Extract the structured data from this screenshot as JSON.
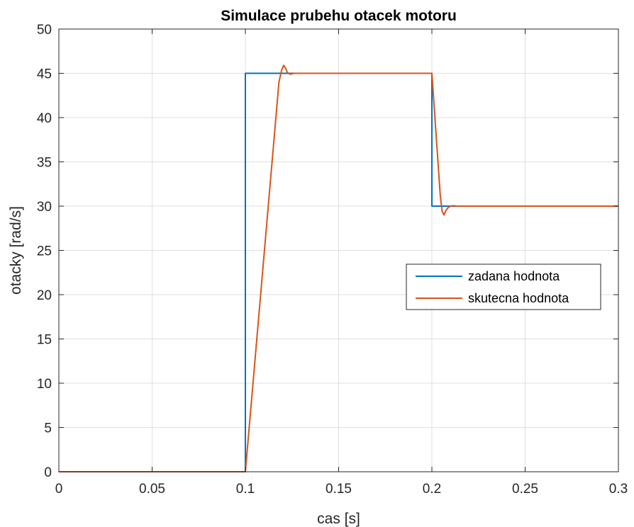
{
  "chart_data": {
    "type": "line",
    "title": "Simulace prubehu otacek motoru",
    "xlabel": "cas [s]",
    "ylabel": "otacky [rad/s]",
    "xlim": [
      0,
      0.3
    ],
    "ylim": [
      0,
      50
    ],
    "xticks": [
      0,
      0.05,
      0.1,
      0.15,
      0.2,
      0.25,
      0.3
    ],
    "xtick_labels": [
      "0",
      "0.05",
      "0.1",
      "0.15",
      "0.2",
      "0.25",
      "0.3"
    ],
    "yticks": [
      0,
      5,
      10,
      15,
      20,
      25,
      30,
      35,
      40,
      45,
      50
    ],
    "ytick_labels": [
      "0",
      "5",
      "10",
      "15",
      "20",
      "25",
      "30",
      "35",
      "40",
      "45",
      "50"
    ],
    "grid": true,
    "legend_position": "center-right",
    "series": [
      {
        "name": "zadana hodnota",
        "color": "#0072BD",
        "x": [
          0,
          0.1,
          0.1,
          0.2,
          0.2,
          0.3
        ],
        "y": [
          0,
          0,
          45,
          45,
          30,
          30
        ]
      },
      {
        "name": "skutecna hodnota",
        "color": "#D95319",
        "x": [
          0,
          0.1,
          0.118,
          0.1195,
          0.1205,
          0.1215,
          0.1225,
          0.124,
          0.126,
          0.13,
          0.2,
          0.2045,
          0.2055,
          0.2065,
          0.2075,
          0.209,
          0.211,
          0.214,
          0.3
        ],
        "y": [
          0,
          0,
          44.0,
          45.4,
          45.9,
          45.6,
          45.1,
          44.9,
          45.0,
          45.0,
          45.0,
          31.2,
          29.4,
          29.0,
          29.5,
          29.9,
          30.05,
          30.0,
          30.0
        ]
      }
    ]
  }
}
